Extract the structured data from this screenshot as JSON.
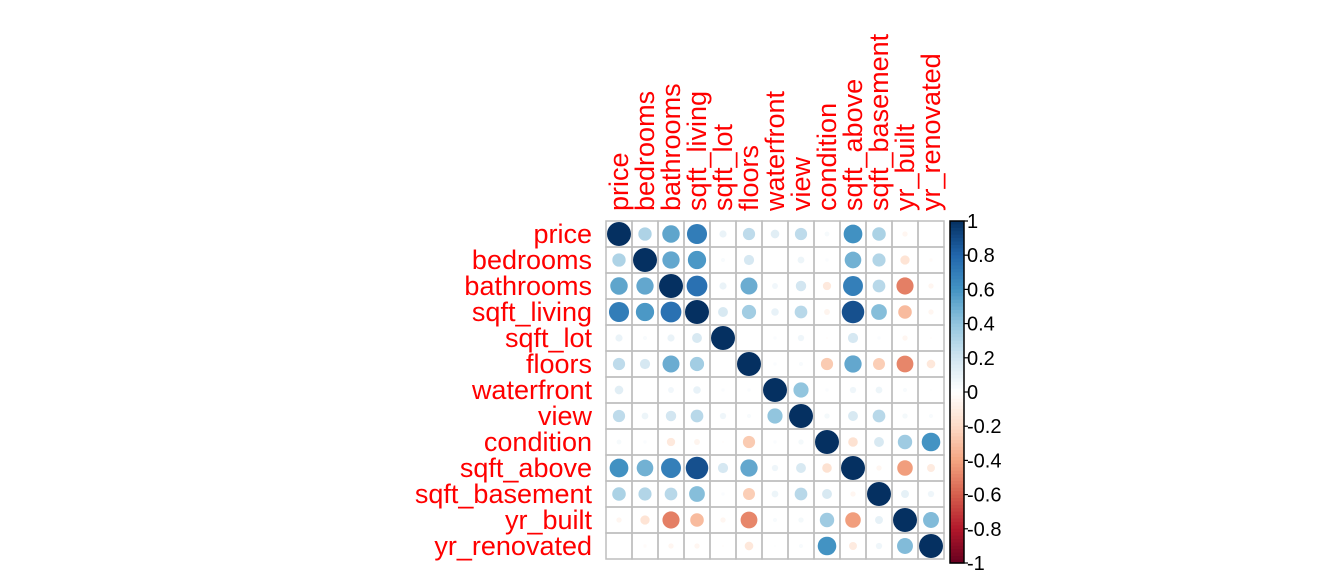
{
  "chart_data": {
    "type": "heatmap",
    "title": "",
    "variables": [
      "price",
      "bedrooms",
      "bathrooms",
      "sqft_living",
      "sqft_lot",
      "floors",
      "waterfront",
      "view",
      "condition",
      "sqft_above",
      "sqft_basement",
      "yr_built",
      "yr_renovated"
    ],
    "matrix": [
      [
        1.0,
        0.31,
        0.53,
        0.7,
        0.09,
        0.26,
        0.13,
        0.26,
        0.04,
        0.61,
        0.32,
        -0.05,
        0.0
      ],
      [
        0.31,
        1.0,
        0.52,
        0.58,
        0.03,
        0.18,
        0.0,
        0.08,
        0.02,
        0.48,
        0.3,
        -0.15,
        -0.02
      ],
      [
        0.53,
        0.52,
        1.0,
        0.75,
        0.09,
        0.5,
        0.06,
        0.19,
        -0.12,
        0.69,
        0.28,
        -0.51,
        -0.05
      ],
      [
        0.7,
        0.58,
        0.75,
        1.0,
        0.17,
        0.35,
        0.1,
        0.28,
        -0.06,
        0.88,
        0.43,
        -0.32,
        -0.05
      ],
      [
        0.09,
        0.03,
        0.09,
        0.17,
        1.0,
        0.0,
        0.02,
        0.07,
        -0.01,
        0.18,
        0.02,
        -0.05,
        -0.01
      ],
      [
        0.26,
        0.18,
        0.5,
        0.35,
        0.0,
        1.0,
        0.02,
        0.03,
        -0.26,
        0.52,
        -0.25,
        -0.49,
        -0.13
      ],
      [
        0.13,
        0.0,
        0.06,
        0.1,
        0.02,
        0.02,
        1.0,
        0.4,
        0.02,
        0.07,
        0.08,
        0.03,
        0.01
      ],
      [
        0.26,
        0.08,
        0.19,
        0.28,
        0.07,
        0.03,
        0.4,
        1.0,
        0.05,
        0.17,
        0.28,
        0.05,
        0.03
      ],
      [
        0.04,
        0.02,
        -0.12,
        -0.06,
        -0.01,
        -0.26,
        0.02,
        0.05,
        1.0,
        -0.16,
        0.17,
        0.36,
        0.6
      ],
      [
        0.61,
        0.48,
        0.69,
        0.88,
        0.18,
        0.52,
        0.07,
        0.17,
        -0.16,
        1.0,
        -0.05,
        -0.42,
        -0.11
      ],
      [
        0.32,
        0.3,
        0.28,
        0.43,
        0.02,
        -0.25,
        0.08,
        0.28,
        0.17,
        -0.05,
        1.0,
        0.11,
        0.07
      ],
      [
        -0.05,
        -0.15,
        -0.51,
        -0.32,
        -0.05,
        -0.49,
        0.03,
        0.05,
        0.36,
        -0.42,
        0.11,
        1.0,
        0.44
      ],
      [
        0.0,
        -0.02,
        -0.05,
        -0.05,
        -0.01,
        -0.13,
        0.01,
        0.03,
        0.6,
        -0.11,
        0.07,
        0.44,
        1.0
      ]
    ],
    "colorbar": {
      "ticks": [
        -1,
        -0.8,
        -0.6,
        -0.4,
        -0.2,
        0,
        0.2,
        0.4,
        0.6,
        0.8,
        1
      ],
      "tick_labels": [
        "-1",
        "-0.8",
        "-0.6",
        "-0.4",
        "-0.2",
        "0",
        "0.2",
        "0.4",
        "0.6",
        "0.8",
        "1"
      ],
      "range": [
        -1,
        1
      ]
    },
    "colors": {
      "negative_end": "#67001f",
      "neutral": "#ffffff",
      "positive_end": "#053061",
      "label_color": "#ff0000",
      "grid_color": "#bebebe"
    }
  }
}
